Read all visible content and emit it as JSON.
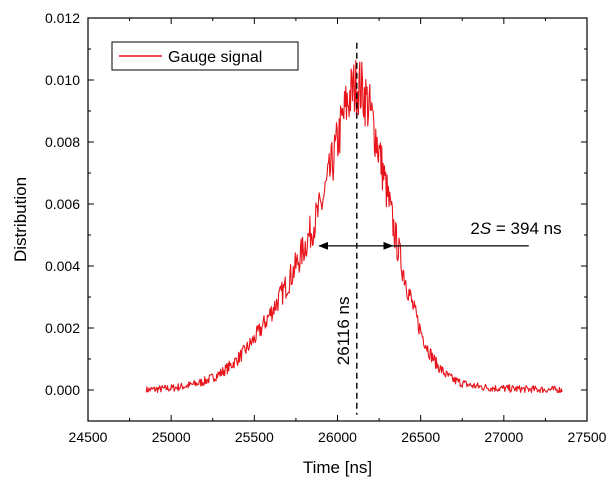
{
  "chart_data": {
    "type": "line",
    "xlabel": "Time [ns]",
    "ylabel": "Distribution",
    "xlim": [
      24500,
      27500
    ],
    "ylim": [
      -0.001,
      0.012
    ],
    "x_ticks": [
      24500,
      25000,
      25500,
      26000,
      26500,
      27000,
      27500
    ],
    "y_ticks": [
      0.0,
      0.002,
      0.004,
      0.006,
      0.008,
      0.01,
      0.012
    ],
    "x_tick_labels": [
      "24500",
      "25000",
      "25500",
      "26000",
      "26500",
      "27000",
      "27500"
    ],
    "y_tick_labels": [
      "0.000",
      "0.002",
      "0.004",
      "0.006",
      "0.008",
      "0.010",
      "0.012"
    ],
    "legend_position": "top-left",
    "colors": {
      "series": "#e8141b",
      "annotation": "#000000"
    },
    "series": [
      {
        "name": "Gauge signal",
        "x": [
          24850,
          24900,
          24950,
          25000,
          25050,
          25100,
          25150,
          25200,
          25250,
          25300,
          25350,
          25400,
          25450,
          25500,
          25550,
          25600,
          25650,
          25700,
          25750,
          25800,
          25850,
          25900,
          25925,
          25950,
          25975,
          26000,
          26025,
          26050,
          26075,
          26100,
          26125,
          26150,
          26175,
          26200,
          26225,
          26250,
          26275,
          26300,
          26325,
          26350,
          26400,
          26450,
          26500,
          26550,
          26600,
          26650,
          26700,
          26750,
          26800,
          26850,
          26900,
          26950,
          27000,
          27050,
          27100,
          27150,
          27200,
          27250,
          27300,
          27350
        ],
        "y": [
          0.0,
          2e-05,
          4e-05,
          6e-05,
          0.0001,
          0.00014,
          0.0002,
          0.00028,
          0.0004,
          0.00055,
          0.00075,
          0.001,
          0.0013,
          0.00165,
          0.00205,
          0.0025,
          0.00295,
          0.00345,
          0.004,
          0.0046,
          0.00525,
          0.0059,
          0.0064,
          0.0069,
          0.00745,
          0.008,
          0.0086,
          0.0091,
          0.0095,
          0.00975,
          0.00985,
          0.00965,
          0.00935,
          0.0089,
          0.00835,
          0.0077,
          0.007,
          0.0063,
          0.0056,
          0.0049,
          0.00375,
          0.00275,
          0.0019,
          0.00125,
          0.0008,
          0.0005,
          0.00032,
          0.00022,
          0.00015,
          0.00011,
          8e-05,
          6e-05,
          5e-05,
          4e-05,
          3e-05,
          2e-05,
          2e-05,
          1e-05,
          1e-05,
          0.0
        ]
      }
    ],
    "annotations": {
      "center_x": 26116,
      "center_label": "26116 ns",
      "arrow_from_x": 25890,
      "arrow_to_x": 26330,
      "arrow_y": 0.00465,
      "arrow_line_end_x": 27150,
      "arrow_label_prefix": "2",
      "arrow_label_italic": "S",
      "arrow_label_suffix": " = 394 ns",
      "dashed_top_y": 0.0112,
      "dashed_bottom_y": -0.0008,
      "label_y_data": 0.0008
    }
  }
}
